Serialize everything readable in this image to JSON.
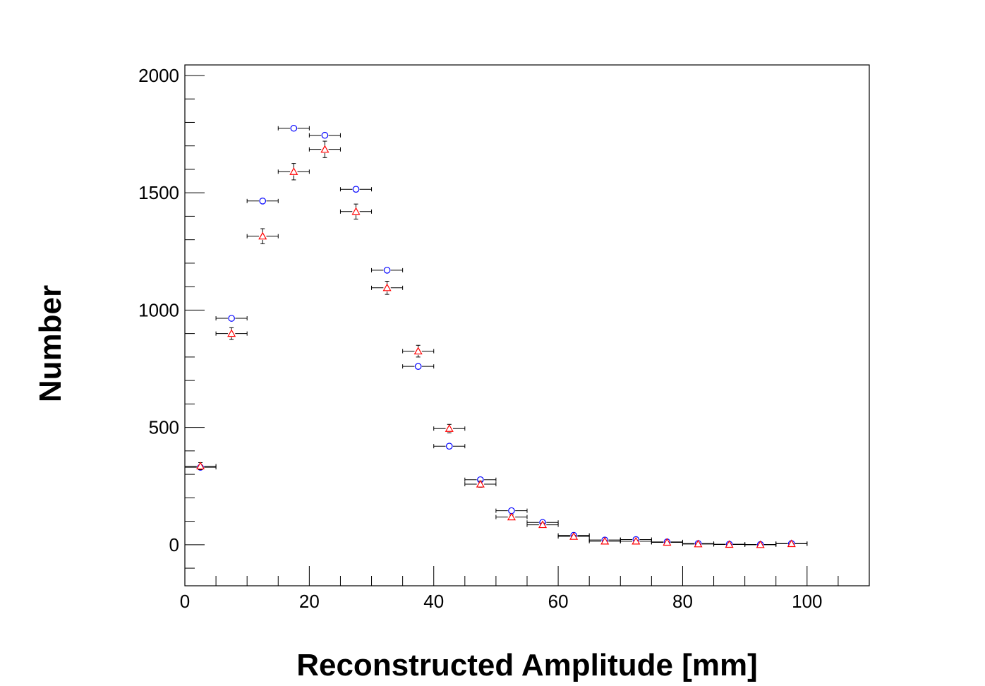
{
  "chart_data": {
    "type": "scatter",
    "title": "",
    "xlabel": "Reconstructed Amplitude [mm]",
    "ylabel": "Number",
    "xlim": [
      0,
      110
    ],
    "ylim": [
      -175,
      2045
    ],
    "x_ticks": [
      0,
      20,
      40,
      60,
      80,
      100
    ],
    "y_ticks": [
      0,
      500,
      1000,
      1500,
      2000
    ],
    "x_tick_labels": [
      "0",
      "20",
      "40",
      "60",
      "80",
      "100"
    ],
    "y_tick_labels": [
      "0",
      "500",
      "1000",
      "1500",
      "2000"
    ],
    "x_minor_step": 5,
    "y_minor_step": 100,
    "grid": false,
    "legend": "none",
    "x": [
      2.5,
      7.5,
      12.5,
      17.5,
      22.5,
      27.5,
      32.5,
      37.5,
      42.5,
      47.5,
      52.5,
      57.5,
      62.5,
      67.5,
      72.5,
      77.5,
      82.5,
      87.5,
      92.5,
      97.5
    ],
    "x_err": 2.5,
    "series": [
      {
        "marker": "circle",
        "color": "#0000ff",
        "values": [
          330,
          965,
          1465,
          1775,
          1745,
          1515,
          1170,
          760,
          420,
          277,
          145,
          95,
          40,
          20,
          22,
          12,
          5,
          2,
          1,
          5
        ],
        "errors": [
          0,
          0,
          0,
          0,
          0,
          0,
          0,
          0,
          0,
          0,
          0,
          0,
          0,
          0,
          0,
          0,
          0,
          0,
          0,
          0
        ]
      },
      {
        "marker": "triangle",
        "color": "#ff0000",
        "values": [
          335,
          900,
          1315,
          1590,
          1685,
          1420,
          1095,
          825,
          495,
          258,
          118,
          85,
          35,
          15,
          15,
          10,
          3,
          1,
          0,
          4
        ],
        "errors": [
          15,
          25,
          32,
          35,
          35,
          32,
          28,
          25,
          18,
          13,
          9,
          7,
          5,
          3,
          3,
          2,
          1,
          1,
          0,
          2
        ]
      }
    ]
  }
}
